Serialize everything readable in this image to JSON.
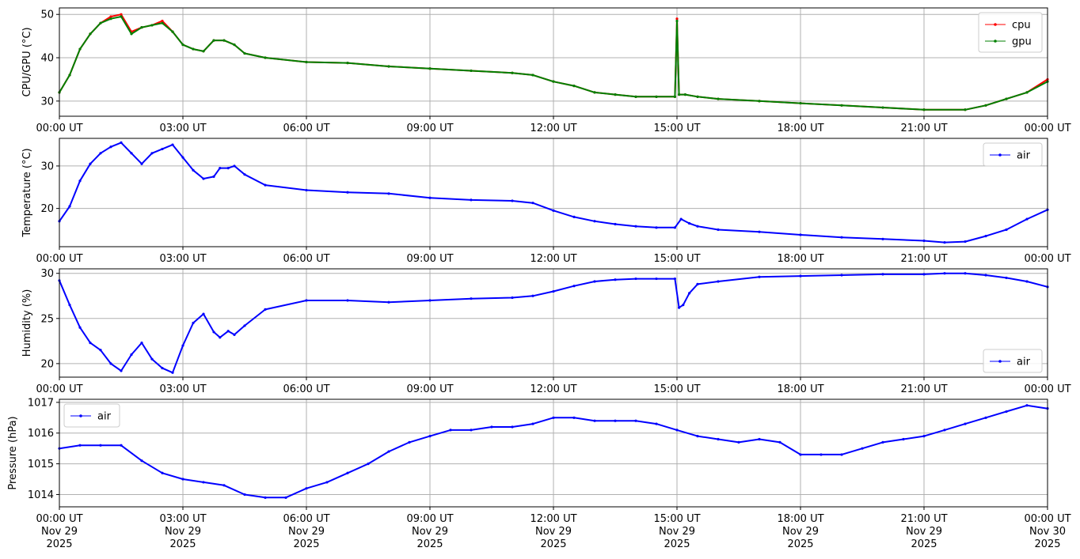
{
  "chart_data": [
    {
      "type": "line",
      "ylabel": "CPU/GPU (°C)",
      "ylim": [
        26.5,
        51.5
      ],
      "yticks": [
        30,
        40,
        50
      ],
      "xlim": [
        0,
        24
      ],
      "xticks": [
        0,
        3,
        6,
        9,
        12,
        15,
        18,
        21,
        24
      ],
      "xtick_labels": [
        "00:00 UT",
        "03:00 UT",
        "06:00 UT",
        "09:00 UT",
        "12:00 UT",
        "15:00 UT",
        "18:00 UT",
        "21:00 UT",
        "00:00 UT"
      ],
      "grid": true,
      "legend": "top-right",
      "series": [
        {
          "name": "cpu",
          "color": "#ff0000",
          "x": [
            0,
            0.25,
            0.5,
            0.75,
            1.0,
            1.25,
            1.5,
            1.75,
            2.0,
            2.25,
            2.5,
            2.75,
            3.0,
            3.25,
            3.5,
            3.75,
            4.0,
            4.25,
            4.5,
            5.0,
            6.0,
            7.0,
            8.0,
            9.0,
            10.0,
            11.0,
            11.5,
            12.0,
            12.5,
            13.0,
            13.5,
            14.0,
            14.5,
            14.95,
            15.0,
            15.05,
            15.2,
            15.5,
            16.0,
            17.0,
            18.0,
            19.0,
            20.0,
            21.0,
            22.0,
            22.5,
            23.0,
            23.5,
            24.0
          ],
          "values": [
            32,
            36,
            42,
            45.5,
            48,
            49.5,
            50,
            46,
            47,
            47.5,
            48.5,
            46,
            43,
            42,
            41.5,
            44,
            44,
            43,
            41,
            40,
            39,
            38.8,
            38,
            37.5,
            37,
            36.5,
            36,
            34.5,
            33.5,
            32,
            31.5,
            31,
            31,
            31,
            49,
            31.5,
            31.5,
            31,
            30.5,
            30,
            29.5,
            29,
            28.5,
            28,
            28,
            29,
            30.5,
            32,
            35
          ]
        },
        {
          "name": "gpu",
          "color": "#008000",
          "x": [
            0,
            0.25,
            0.5,
            0.75,
            1.0,
            1.25,
            1.5,
            1.75,
            2.0,
            2.25,
            2.5,
            2.75,
            3.0,
            3.25,
            3.5,
            3.75,
            4.0,
            4.25,
            4.5,
            5.0,
            6.0,
            7.0,
            8.0,
            9.0,
            10.0,
            11.0,
            11.5,
            12.0,
            12.5,
            13.0,
            13.5,
            14.0,
            14.5,
            14.95,
            15.0,
            15.05,
            15.2,
            15.5,
            16.0,
            17.0,
            18.0,
            19.0,
            20.0,
            21.0,
            22.0,
            22.5,
            23.0,
            23.5,
            24.0
          ],
          "values": [
            32,
            36,
            42,
            45.5,
            48,
            49,
            49.5,
            45.5,
            47,
            47.5,
            48,
            46,
            43,
            42,
            41.5,
            44,
            44,
            43,
            41,
            40,
            39,
            38.8,
            38,
            37.5,
            37,
            36.5,
            36,
            34.5,
            33.5,
            32,
            31.5,
            31,
            31,
            31,
            48.5,
            31.5,
            31.5,
            31,
            30.5,
            30,
            29.5,
            29,
            28.5,
            28,
            28,
            29,
            30.5,
            32,
            34.5
          ]
        }
      ]
    },
    {
      "type": "line",
      "ylabel": "Temperature (°C)",
      "ylim": [
        11,
        36.5
      ],
      "yticks": [
        20,
        30
      ],
      "xlim": [
        0,
        24
      ],
      "xticks": [
        0,
        3,
        6,
        9,
        12,
        15,
        18,
        21,
        24
      ],
      "xtick_labels": [
        "00:00 UT",
        "03:00 UT",
        "06:00 UT",
        "09:00 UT",
        "12:00 UT",
        "15:00 UT",
        "18:00 UT",
        "21:00 UT",
        "00:00 UT"
      ],
      "grid": true,
      "legend": "top-right",
      "series": [
        {
          "name": "air",
          "color": "#0000ff",
          "x": [
            0,
            0.25,
            0.5,
            0.75,
            1.0,
            1.25,
            1.5,
            1.75,
            2.0,
            2.25,
            2.5,
            2.75,
            3.0,
            3.25,
            3.5,
            3.75,
            3.9,
            4.1,
            4.25,
            4.5,
            5.0,
            6.0,
            7.0,
            8.0,
            9.0,
            10.0,
            11.0,
            11.5,
            12.0,
            12.5,
            13.0,
            13.5,
            14.0,
            14.5,
            14.95,
            15.1,
            15.3,
            15.5,
            16.0,
            17.0,
            18.0,
            19.0,
            20.0,
            21.0,
            21.5,
            22.0,
            22.5,
            23.0,
            23.5,
            24.0
          ],
          "values": [
            17,
            20.5,
            26.5,
            30.5,
            33,
            34.5,
            35.5,
            33,
            30.5,
            33,
            34,
            35,
            32,
            29,
            27,
            27.5,
            29.5,
            29.5,
            30,
            28,
            25.5,
            24.3,
            23.8,
            23.5,
            22.5,
            22,
            21.8,
            21.3,
            19.5,
            18,
            17,
            16.3,
            15.8,
            15.5,
            15.5,
            17.5,
            16.5,
            15.8,
            15,
            14.5,
            13.8,
            13.2,
            12.8,
            12.4,
            12,
            12.2,
            13.5,
            15,
            17.5,
            19.7
          ]
        }
      ]
    },
    {
      "type": "line",
      "ylabel": "Humidity (%)",
      "ylim": [
        18.5,
        30.5
      ],
      "yticks": [
        20,
        25,
        30
      ],
      "xlim": [
        0,
        24
      ],
      "xticks": [
        0,
        3,
        6,
        9,
        12,
        15,
        18,
        21,
        24
      ],
      "xtick_labels": [
        "00:00 UT",
        "03:00 UT",
        "06:00 UT",
        "09:00 UT",
        "12:00 UT",
        "15:00 UT",
        "18:00 UT",
        "21:00 UT",
        "00:00 UT"
      ],
      "grid": true,
      "legend": "bottom-right",
      "series": [
        {
          "name": "air",
          "color": "#0000ff",
          "x": [
            0,
            0.25,
            0.5,
            0.75,
            1.0,
            1.25,
            1.5,
            1.75,
            2.0,
            2.25,
            2.5,
            2.75,
            3.0,
            3.25,
            3.5,
            3.75,
            3.9,
            4.1,
            4.25,
            4.5,
            5.0,
            6.0,
            7.0,
            8.0,
            9.0,
            10.0,
            11.0,
            11.5,
            12.0,
            12.5,
            13.0,
            13.5,
            14.0,
            14.5,
            14.95,
            15.05,
            15.15,
            15.3,
            15.5,
            16.0,
            17.0,
            18.0,
            19.0,
            20.0,
            21.0,
            21.5,
            22.0,
            22.5,
            23.0,
            23.5,
            24.0
          ],
          "values": [
            29.2,
            26.5,
            24,
            22.3,
            21.5,
            20,
            19.2,
            21,
            22.3,
            20.5,
            19.5,
            19,
            22,
            24.5,
            25.5,
            23.5,
            22.9,
            23.6,
            23.2,
            24.2,
            26,
            27,
            27,
            26.8,
            27,
            27.2,
            27.3,
            27.5,
            28,
            28.6,
            29.1,
            29.3,
            29.4,
            29.4,
            29.4,
            26.2,
            26.5,
            27.8,
            28.8,
            29.1,
            29.6,
            29.7,
            29.8,
            29.9,
            29.9,
            30,
            30,
            29.8,
            29.5,
            29.1,
            28.5
          ]
        }
      ]
    },
    {
      "type": "line",
      "ylabel": "Pressure (hPa)",
      "ylim": [
        1013.6,
        1017.1
      ],
      "yticks": [
        1014,
        1015,
        1016,
        1017
      ],
      "xlim": [
        0,
        24
      ],
      "xticks": [
        0,
        3,
        6,
        9,
        12,
        15,
        18,
        21,
        24
      ],
      "xtick_labels": [
        "00:00 UT\nNov 29\n2025",
        "03:00 UT\nNov 29\n2025",
        "06:00 UT\nNov 29\n2025",
        "09:00 UT\nNov 29\n2025",
        "12:00 UT\nNov 29\n2025",
        "15:00 UT\nNov 29\n2025",
        "18:00 UT\nNov 29\n2025",
        "21:00 UT\nNov 29\n2025",
        "00:00 UT\nNov 30\n2025"
      ],
      "grid": true,
      "legend": "top-left",
      "series": [
        {
          "name": "air",
          "color": "#0000ff",
          "x": [
            0,
            0.5,
            1.0,
            1.5,
            2.0,
            2.5,
            3.0,
            3.5,
            4.0,
            4.5,
            5.0,
            5.5,
            6.0,
            6.5,
            7.0,
            7.5,
            8.0,
            8.5,
            9.0,
            9.5,
            10.0,
            10.5,
            11.0,
            11.5,
            12.0,
            12.5,
            13.0,
            13.5,
            14.0,
            14.5,
            15.0,
            15.5,
            16.0,
            16.5,
            17.0,
            17.5,
            18.0,
            18.5,
            19.0,
            19.5,
            20.0,
            20.5,
            21.0,
            21.5,
            22.0,
            22.5,
            23.0,
            23.5,
            24.0
          ],
          "values": [
            1015.5,
            1015.6,
            1015.6,
            1015.6,
            1015.1,
            1014.7,
            1014.5,
            1014.4,
            1014.3,
            1014.0,
            1013.9,
            1013.9,
            1014.2,
            1014.4,
            1014.7,
            1015.0,
            1015.4,
            1015.7,
            1015.9,
            1016.1,
            1016.1,
            1016.2,
            1016.2,
            1016.3,
            1016.5,
            1016.5,
            1016.4,
            1016.4,
            1016.4,
            1016.3,
            1016.1,
            1015.9,
            1015.8,
            1015.7,
            1015.8,
            1015.7,
            1015.3,
            1015.3,
            1015.3,
            1015.5,
            1015.7,
            1015.8,
            1015.9,
            1016.1,
            1016.3,
            1016.5,
            1016.7,
            1016.9,
            1016.8
          ]
        }
      ]
    }
  ]
}
